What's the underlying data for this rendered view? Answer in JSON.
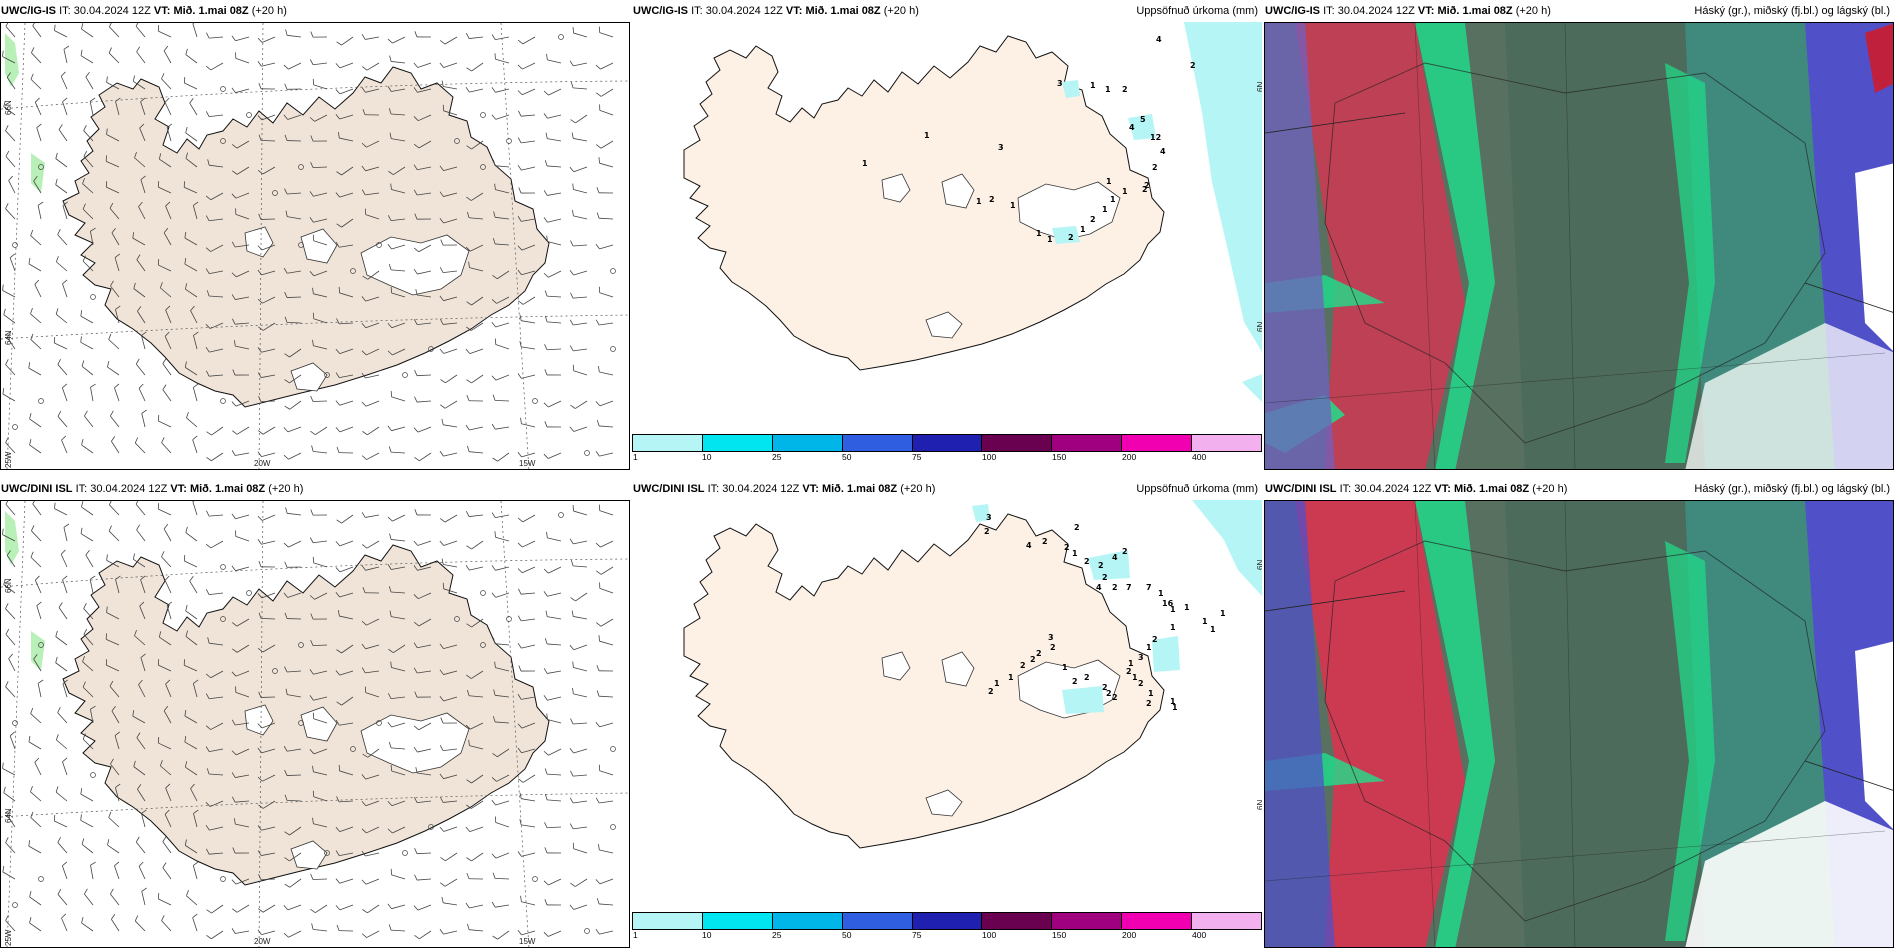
{
  "panels": {
    "p1": {
      "model": "UWC/IG-IS",
      "it_label": "IT:",
      "it_value": "30.04.2024 12Z",
      "vt_label": "VT:",
      "vt_value": "Mið. 1.mai 08Z",
      "lead": "(+20 h)",
      "right_title": ""
    },
    "p2": {
      "model": "UWC/IG-IS",
      "it_label": "IT:",
      "it_value": "30.04.2024 12Z",
      "vt_label": "VT:",
      "vt_value": "Mið. 1.mai 08Z",
      "lead": "(+20 h)",
      "right_title": "Uppsöfnuð úrkoma (mm)"
    },
    "p3": {
      "model": "UWC/IG-IS",
      "it_label": "IT:",
      "it_value": "30.04.2024 12Z",
      "vt_label": "VT:",
      "vt_value": "Mið. 1.mai 08Z",
      "lead": "(+20 h)",
      "right_title": "Háský (gr.), miðský (fj.bl.) og lágský (bl.)"
    },
    "p4": {
      "model": "UWC/DINI ISL",
      "it_label": "IT:",
      "it_value": "30.04.2024 12Z",
      "vt_label": "VT:",
      "vt_value": "Mið. 1.mai 08Z",
      "lead": "(+20 h)",
      "right_title": ""
    },
    "p5": {
      "model": "UWC/DINI ISL",
      "it_label": "IT:",
      "it_value": "30.04.2024 12Z",
      "vt_label": "VT:",
      "vt_value": "Mið. 1.mai 08Z",
      "lead": "(+20 h)",
      "right_title": "Uppsöfnuð úrkoma (mm)"
    },
    "p6": {
      "model": "UWC/DINI ISL",
      "it_label": "IT:",
      "it_value": "30.04.2024 12Z",
      "vt_label": "VT:",
      "vt_value": "Mið. 1.mai 08Z",
      "lead": "(+20 h)",
      "right_title": "Háský (gr.), miðský (fj.bl.) og lágský (bl.)"
    }
  },
  "coords": {
    "lat66": "66N",
    "lat64": "64N",
    "lon25": "25W",
    "lon20": "20W",
    "lon15": "15W",
    "lon6": "6N",
    "lon6b": "6N"
  },
  "colorbar": {
    "labels": [
      "1",
      "10",
      "25",
      "50",
      "75",
      "100",
      "150",
      "200",
      "400"
    ],
    "colors": [
      "#b6f5f5",
      "#00e5f0",
      "#00b5e8",
      "#2f5fe0",
      "#2020b0",
      "#6a0050",
      "#a0007f",
      "#f000b0",
      "#f2b0ee"
    ]
  },
  "precip_top": [
    "3",
    "1",
    "1",
    "2",
    "5",
    "4",
    "12",
    "4",
    "2",
    "2",
    "1",
    "1",
    "1",
    "2",
    "1",
    "2",
    "1",
    "1",
    "1",
    "2",
    "1",
    "1",
    "1",
    "3",
    "4",
    "2",
    "1",
    "2"
  ],
  "precip_bottom": [
    "3",
    "2",
    "2",
    "4",
    "2",
    "2",
    "1",
    "2",
    "2",
    "4",
    "2",
    "2",
    "4",
    "2",
    "7",
    "7",
    "1",
    "16",
    "1",
    "1",
    "1",
    "1",
    "1",
    "1",
    "2",
    "1",
    "3",
    "1",
    "2",
    "1",
    "2",
    "1",
    "1",
    "1",
    "2",
    "2",
    "2",
    "2",
    "2",
    "2",
    "1",
    "2",
    "3",
    "2",
    "2",
    "2",
    "1",
    "1",
    "2"
  ],
  "colors": {
    "land": "#f0e4d8",
    "land_precip": "#fdf1e6",
    "cloud_high": "#5a6e5e",
    "cloud_mid": "#1ee08c",
    "cloud_low": "#5050c8",
    "cloud_red": "#e03050"
  }
}
